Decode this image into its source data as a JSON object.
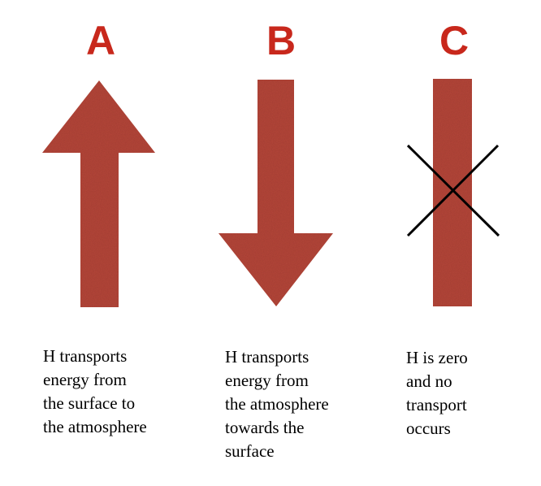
{
  "panels": [
    {
      "letter": "A",
      "symbol": "up-arrow",
      "caption": [
        "H transports",
        "energy from",
        "the surface to",
        "the atmosphere"
      ]
    },
    {
      "letter": "B",
      "symbol": "down-arrow",
      "caption": [
        "H transports",
        "energy from",
        "the atmosphere",
        "towards the",
        "surface"
      ]
    },
    {
      "letter": "C",
      "symbol": "crossed-out-bar",
      "caption": [
        "H is zero",
        "and no",
        "transport",
        "occurs"
      ]
    }
  ],
  "colors": {
    "letter": "#c8281c",
    "arrow_fill": "#b5473a",
    "arrow_dark": "#9e3a2f",
    "cross": "#000000",
    "caption": "#000000"
  }
}
